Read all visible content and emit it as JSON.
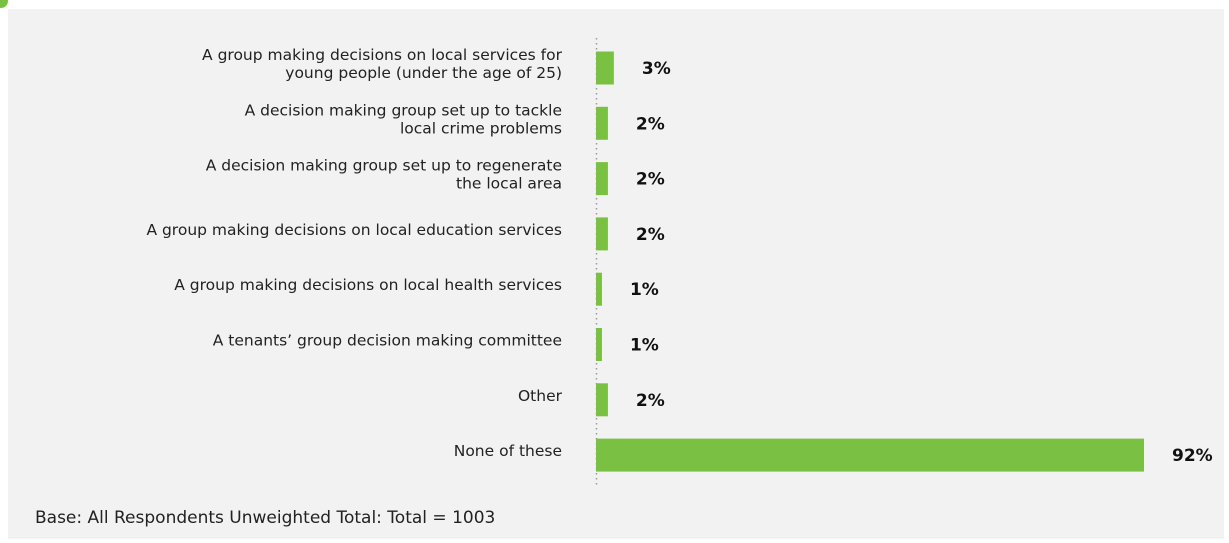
{
  "chart_data": {
    "type": "bar",
    "orientation": "horizontal",
    "categories": [
      [
        "A group making decisions on local services for",
        "young people (under the age of 25)"
      ],
      [
        "A decision making group set up to tackle",
        "local crime problems"
      ],
      [
        "A decision making group set up to regenerate",
        "the local area"
      ],
      [
        "A group making decisions on local education services"
      ],
      [
        "A group making decisions on local health services"
      ],
      [
        "A tenants’ group decision making committee"
      ],
      [
        "Other"
      ],
      [
        "None of these"
      ]
    ],
    "values": [
      3,
      2,
      2,
      2,
      1,
      1,
      2,
      92
    ],
    "value_labels": [
      "3%",
      "2%",
      "2%",
      "2%",
      "1%",
      "1%",
      "2%",
      "92%"
    ],
    "unit": "%",
    "xlim": [
      0,
      92
    ],
    "grid": false,
    "bar_color": "#7ac143",
    "axis_style": "dotted vertical baseline"
  },
  "footnote": "Base: All Respondents Unweighted Total: Total = 1003",
  "accent_color": "#7ac143"
}
